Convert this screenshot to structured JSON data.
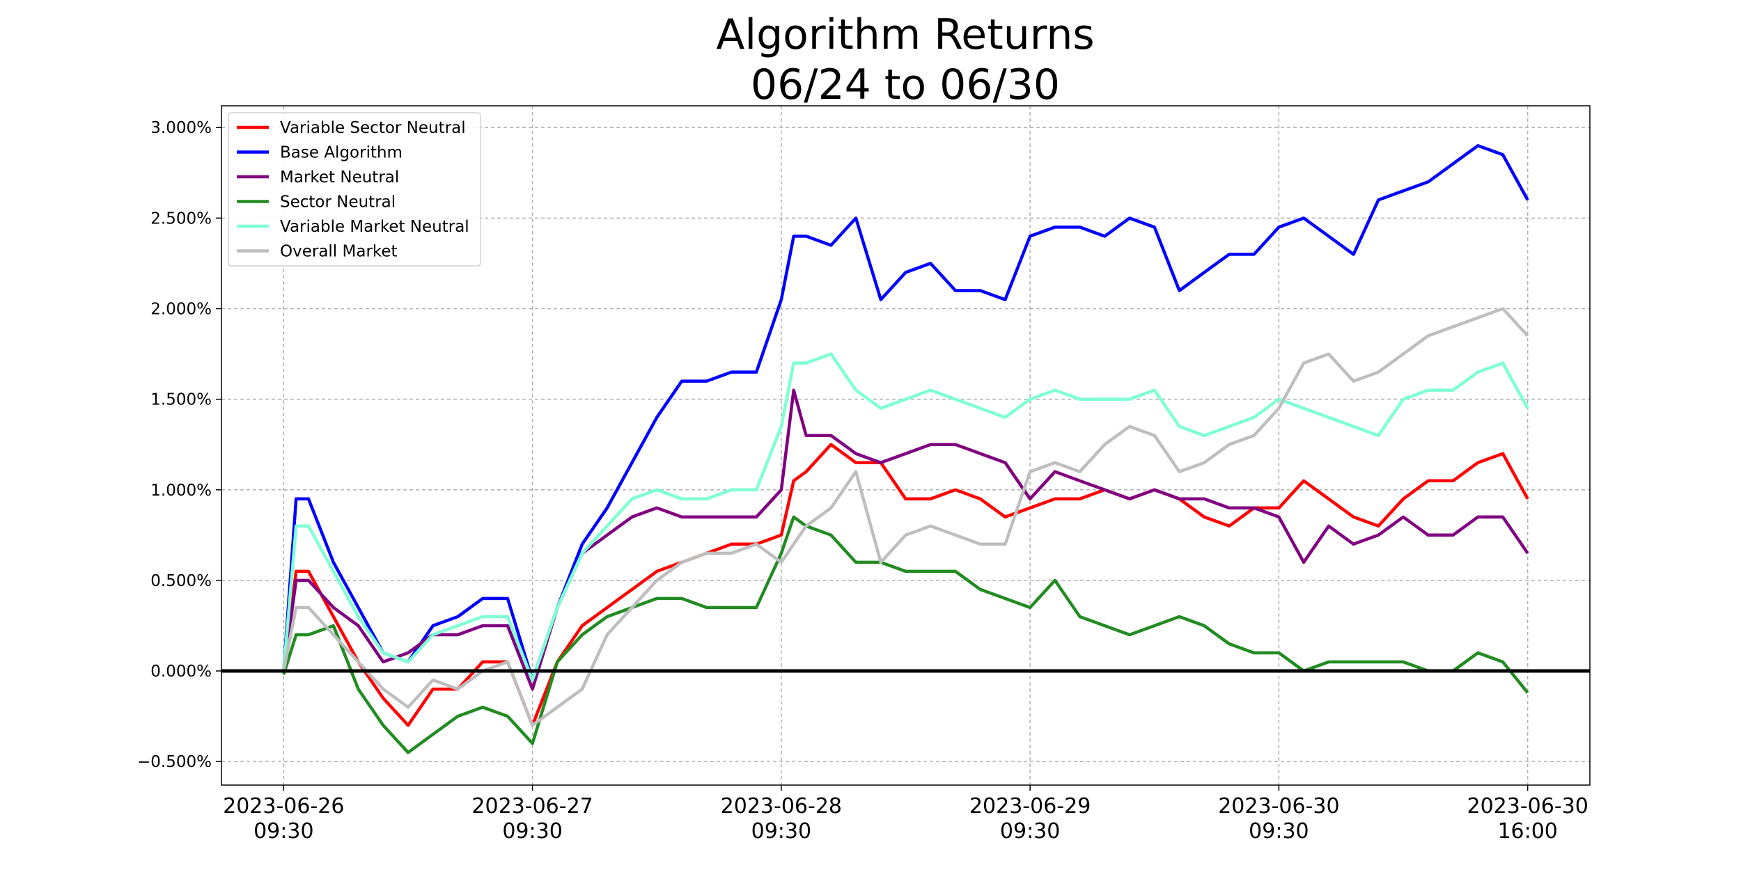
{
  "chart_data": {
    "type": "line",
    "title_line1": "Algorithm Returns",
    "title_line2": "06/24 to 06/30",
    "xlabel": "",
    "ylabel": "",
    "ylim": [
      -0.63,
      3.12
    ],
    "yticks": [
      -0.5,
      0.0,
      0.5,
      1.0,
      1.5,
      2.0,
      2.5,
      3.0
    ],
    "ytick_labels": [
      "−0.500%",
      "0.000%",
      "0.500%",
      "1.000%",
      "1.500%",
      "2.000%",
      "2.500%",
      "3.000%"
    ],
    "xticks": [
      {
        "line1": "2023-06-26",
        "line2": "09:30",
        "t": 0
      },
      {
        "line1": "2023-06-27",
        "line2": "09:30",
        "t": 1
      },
      {
        "line1": "2023-06-28",
        "line2": "09:30",
        "t": 2
      },
      {
        "line1": "2023-06-29",
        "line2": "09:30",
        "t": 3
      },
      {
        "line1": "2023-06-30",
        "line2": "09:30",
        "t": 4
      },
      {
        "line1": "2023-06-30",
        "line2": "16:00",
        "t": 5
      }
    ],
    "xlim": [
      -0.25,
      5.25
    ],
    "grid": true,
    "zero_line": true,
    "legend_position": "upper-left",
    "series": [
      {
        "name": "Variable Sector Neutral",
        "color": "#ff0000",
        "x": [
          0,
          0.05,
          0.1,
          0.2,
          0.3,
          0.4,
          0.5,
          0.6,
          0.7,
          0.8,
          0.9,
          1.0,
          1.1,
          1.2,
          1.3,
          1.4,
          1.5,
          1.6,
          1.7,
          1.8,
          1.9,
          2.0,
          2.05,
          2.1,
          2.2,
          2.3,
          2.4,
          2.5,
          2.6,
          2.7,
          2.8,
          2.9,
          3.0,
          3.1,
          3.2,
          3.3,
          3.4,
          3.5,
          3.6,
          3.7,
          3.8,
          3.9,
          4.0,
          4.1,
          4.2,
          4.3,
          4.4,
          4.5,
          4.6,
          4.7,
          4.8,
          4.9,
          5.0
        ],
        "y": [
          0.0,
          0.55,
          0.55,
          0.3,
          0.05,
          -0.15,
          -0.3,
          -0.1,
          -0.1,
          0.05,
          0.05,
          -0.3,
          0.05,
          0.25,
          0.35,
          0.45,
          0.55,
          0.6,
          0.65,
          0.7,
          0.7,
          0.75,
          1.05,
          1.1,
          1.25,
          1.15,
          1.15,
          0.95,
          0.95,
          1.0,
          0.95,
          0.85,
          0.9,
          0.95,
          0.95,
          1.0,
          0.95,
          1.0,
          0.95,
          0.85,
          0.8,
          0.9,
          0.9,
          1.05,
          0.95,
          0.85,
          0.8,
          0.95,
          1.05,
          1.05,
          1.15,
          1.2,
          0.95
        ]
      },
      {
        "name": "Base Algorithm",
        "color": "#0000ff",
        "x": [
          0,
          0.05,
          0.1,
          0.2,
          0.3,
          0.4,
          0.5,
          0.6,
          0.7,
          0.8,
          0.9,
          1.0,
          1.1,
          1.2,
          1.3,
          1.4,
          1.5,
          1.6,
          1.7,
          1.8,
          1.9,
          2.0,
          2.05,
          2.1,
          2.2,
          2.3,
          2.4,
          2.5,
          2.6,
          2.7,
          2.8,
          2.9,
          3.0,
          3.1,
          3.2,
          3.3,
          3.4,
          3.5,
          3.6,
          3.7,
          3.8,
          3.9,
          4.0,
          4.1,
          4.2,
          4.3,
          4.4,
          4.5,
          4.6,
          4.7,
          4.8,
          4.9,
          5.0
        ],
        "y": [
          0.0,
          0.95,
          0.95,
          0.6,
          0.35,
          0.1,
          0.05,
          0.25,
          0.3,
          0.4,
          0.4,
          -0.05,
          0.35,
          0.7,
          0.9,
          1.15,
          1.4,
          1.6,
          1.6,
          1.65,
          1.65,
          2.05,
          2.4,
          2.4,
          2.35,
          2.5,
          2.05,
          2.2,
          2.25,
          2.1,
          2.1,
          2.05,
          2.4,
          2.45,
          2.45,
          2.4,
          2.5,
          2.45,
          2.1,
          2.2,
          2.3,
          2.3,
          2.45,
          2.5,
          2.4,
          2.3,
          2.6,
          2.65,
          2.7,
          2.8,
          2.9,
          2.85,
          2.6
        ]
      },
      {
        "name": "Market Neutral",
        "color": "#800080",
        "x": [
          0,
          0.05,
          0.1,
          0.2,
          0.3,
          0.4,
          0.5,
          0.6,
          0.7,
          0.8,
          0.9,
          1.0,
          1.1,
          1.2,
          1.3,
          1.4,
          1.5,
          1.6,
          1.7,
          1.8,
          1.9,
          2.0,
          2.05,
          2.1,
          2.2,
          2.3,
          2.4,
          2.5,
          2.6,
          2.7,
          2.8,
          2.9,
          3.0,
          3.1,
          3.2,
          3.3,
          3.4,
          3.5,
          3.6,
          3.7,
          3.8,
          3.9,
          4.0,
          4.1,
          4.2,
          4.3,
          4.4,
          4.5,
          4.6,
          4.7,
          4.8,
          4.9,
          5.0
        ],
        "y": [
          0.0,
          0.5,
          0.5,
          0.35,
          0.25,
          0.05,
          0.1,
          0.2,
          0.2,
          0.25,
          0.25,
          -0.1,
          0.35,
          0.65,
          0.75,
          0.85,
          0.9,
          0.85,
          0.85,
          0.85,
          0.85,
          1.0,
          1.55,
          1.3,
          1.3,
          1.2,
          1.15,
          1.2,
          1.25,
          1.25,
          1.2,
          1.15,
          0.95,
          1.1,
          1.05,
          1.0,
          0.95,
          1.0,
          0.95,
          0.95,
          0.9,
          0.9,
          0.85,
          0.6,
          0.8,
          0.7,
          0.75,
          0.85,
          0.75,
          0.75,
          0.85,
          0.85,
          0.65
        ]
      },
      {
        "name": "Sector Neutral",
        "color": "#228b22",
        "x": [
          0,
          0.05,
          0.1,
          0.2,
          0.3,
          0.4,
          0.5,
          0.6,
          0.7,
          0.8,
          0.9,
          1.0,
          1.1,
          1.2,
          1.3,
          1.4,
          1.5,
          1.6,
          1.7,
          1.8,
          1.9,
          2.0,
          2.05,
          2.1,
          2.2,
          2.3,
          2.4,
          2.5,
          2.6,
          2.7,
          2.8,
          2.9,
          3.0,
          3.1,
          3.2,
          3.3,
          3.4,
          3.5,
          3.6,
          3.7,
          3.8,
          3.9,
          4.0,
          4.1,
          4.2,
          4.3,
          4.4,
          4.5,
          4.6,
          4.7,
          4.8,
          4.9,
          5.0
        ],
        "y": [
          -0.02,
          0.2,
          0.2,
          0.25,
          -0.1,
          -0.3,
          -0.45,
          -0.35,
          -0.25,
          -0.2,
          -0.25,
          -0.4,
          0.05,
          0.2,
          0.3,
          0.35,
          0.4,
          0.4,
          0.35,
          0.35,
          0.35,
          0.65,
          0.85,
          0.8,
          0.75,
          0.6,
          0.6,
          0.55,
          0.55,
          0.55,
          0.45,
          0.4,
          0.35,
          0.5,
          0.3,
          0.25,
          0.2,
          0.25,
          0.3,
          0.25,
          0.15,
          0.1,
          0.1,
          0.0,
          0.05,
          0.05,
          0.05,
          0.05,
          0.0,
          0.0,
          0.1,
          0.05,
          -0.12
        ]
      },
      {
        "name": "Variable Market Neutral",
        "color": "#7fffd4",
        "x": [
          0,
          0.05,
          0.1,
          0.2,
          0.3,
          0.4,
          0.5,
          0.6,
          0.7,
          0.8,
          0.9,
          1.0,
          1.1,
          1.2,
          1.3,
          1.4,
          1.5,
          1.6,
          1.7,
          1.8,
          1.9,
          2.0,
          2.05,
          2.1,
          2.2,
          2.3,
          2.4,
          2.5,
          2.6,
          2.7,
          2.8,
          2.9,
          3.0,
          3.1,
          3.2,
          3.3,
          3.4,
          3.5,
          3.6,
          3.7,
          3.8,
          3.9,
          4.0,
          4.1,
          4.2,
          4.3,
          4.4,
          4.5,
          4.6,
          4.7,
          4.8,
          4.9,
          5.0
        ],
        "y": [
          0.0,
          0.8,
          0.8,
          0.55,
          0.3,
          0.1,
          0.05,
          0.2,
          0.25,
          0.3,
          0.3,
          -0.05,
          0.35,
          0.65,
          0.8,
          0.95,
          1.0,
          0.95,
          0.95,
          1.0,
          1.0,
          1.35,
          1.7,
          1.7,
          1.75,
          1.55,
          1.45,
          1.5,
          1.55,
          1.5,
          1.45,
          1.4,
          1.5,
          1.55,
          1.5,
          1.5,
          1.5,
          1.55,
          1.35,
          1.3,
          1.35,
          1.4,
          1.5,
          1.45,
          1.4,
          1.35,
          1.3,
          1.5,
          1.55,
          1.55,
          1.65,
          1.7,
          1.45
        ]
      },
      {
        "name": "Overall Market",
        "color": "#bebebe",
        "x": [
          0,
          0.05,
          0.1,
          0.2,
          0.3,
          0.4,
          0.5,
          0.6,
          0.7,
          0.8,
          0.9,
          1.0,
          1.1,
          1.2,
          1.3,
          1.4,
          1.5,
          1.6,
          1.7,
          1.8,
          1.9,
          2.0,
          2.05,
          2.1,
          2.2,
          2.3,
          2.4,
          2.5,
          2.6,
          2.7,
          2.8,
          2.9,
          3.0,
          3.1,
          3.2,
          3.3,
          3.4,
          3.5,
          3.6,
          3.7,
          3.8,
          3.9,
          4.0,
          4.1,
          4.2,
          4.3,
          4.4,
          4.5,
          4.6,
          4.7,
          4.8,
          4.9,
          5.0
        ],
        "y": [
          0.0,
          0.35,
          0.35,
          0.2,
          0.05,
          -0.1,
          -0.2,
          -0.05,
          -0.1,
          0.0,
          0.05,
          -0.3,
          -0.2,
          -0.1,
          0.2,
          0.35,
          0.5,
          0.6,
          0.65,
          0.65,
          0.7,
          0.6,
          0.7,
          0.8,
          0.9,
          1.1,
          0.6,
          0.75,
          0.8,
          0.75,
          0.7,
          0.7,
          1.1,
          1.15,
          1.1,
          1.25,
          1.35,
          1.3,
          1.1,
          1.15,
          1.25,
          1.3,
          1.45,
          1.7,
          1.75,
          1.6,
          1.65,
          1.75,
          1.85,
          1.9,
          1.95,
          2.0,
          1.85
        ]
      }
    ]
  }
}
